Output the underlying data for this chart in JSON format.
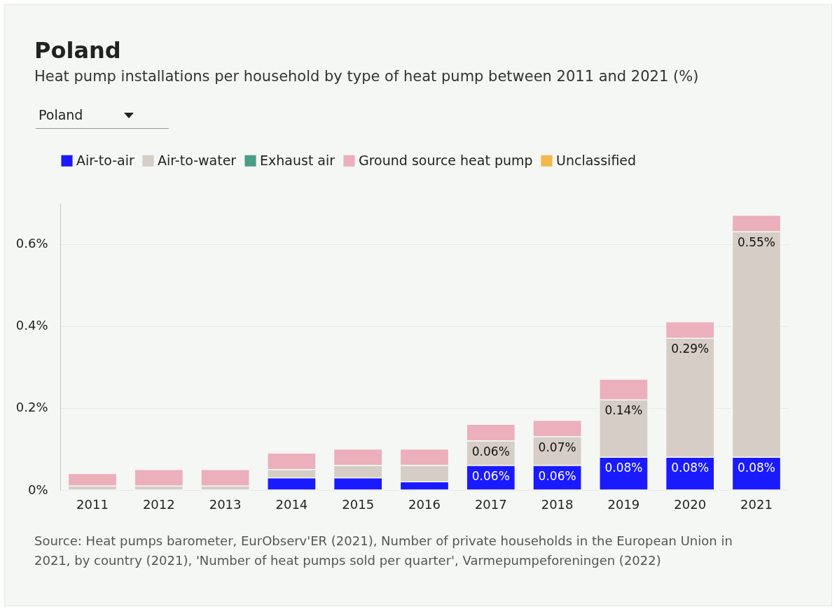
{
  "chart_data": {
    "type": "bar",
    "title": "Poland",
    "subtitle": "Heat pump installations per household by type of heat pump between 2011 and 2021 (%)",
    "categories": [
      "2011",
      "2012",
      "2013",
      "2014",
      "2015",
      "2016",
      "2017",
      "2018",
      "2019",
      "2020",
      "2021"
    ],
    "stacked": true,
    "series": [
      {
        "name": "Air-to-air",
        "color": "#1a1aff",
        "values": [
          null,
          null,
          null,
          0.03,
          0.03,
          0.02,
          0.06,
          0.06,
          0.08,
          0.08,
          0.08
        ],
        "value_labels": [
          null,
          null,
          null,
          null,
          null,
          null,
          "0.06%",
          "0.06%",
          "0.08%",
          "0.08%",
          "0.08%"
        ]
      },
      {
        "name": "Air-to-water",
        "color": "#d5cdc6",
        "values": [
          0.01,
          0.01,
          0.01,
          0.02,
          0.03,
          0.04,
          0.06,
          0.07,
          0.14,
          0.29,
          0.55
        ],
        "value_labels": [
          null,
          null,
          null,
          null,
          null,
          null,
          "0.06%",
          "0.07%",
          "0.14%",
          "0.29%",
          "0.55%"
        ]
      },
      {
        "name": "Exhaust air",
        "color": "#4a9e87",
        "values": [
          null,
          null,
          null,
          null,
          null,
          null,
          null,
          null,
          null,
          null,
          null
        ]
      },
      {
        "name": "Ground source heat pump",
        "color": "#ecafbc",
        "values": [
          0.03,
          0.04,
          0.04,
          0.04,
          0.04,
          0.04,
          0.04,
          0.04,
          0.05,
          0.04,
          0.04
        ]
      },
      {
        "name": "Unclassified",
        "color": "#f2b84b",
        "values": [
          null,
          null,
          null,
          null,
          null,
          null,
          null,
          null,
          null,
          null,
          null
        ]
      }
    ],
    "yticks": [
      {
        "value": 0,
        "label": "0%"
      },
      {
        "value": 0.2,
        "label": "0.2%"
      },
      {
        "value": 0.4,
        "label": "0.4%"
      },
      {
        "value": 0.6,
        "label": "0.6%"
      }
    ],
    "ylim": [
      0,
      0.7
    ],
    "grid": "y",
    "legend": "top left",
    "annotations": [
      "Poland",
      "Source: Heat pumps barometer, EurObserv'ER (2021), Number of private households in the European Union in 2021, by country (2021), 'Number of heat pumps sold per quarter', Varmepumpeforeningen (2022)"
    ]
  }
}
